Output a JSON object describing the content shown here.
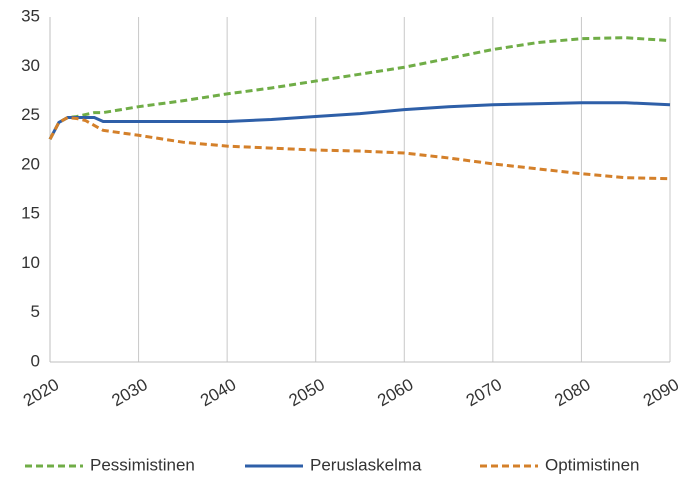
{
  "chart_data": {
    "type": "line",
    "x": [
      2020,
      2021,
      2022,
      2023,
      2024,
      2025,
      2026,
      2030,
      2035,
      2040,
      2045,
      2050,
      2055,
      2060,
      2065,
      2070,
      2075,
      2080,
      2085,
      2090
    ],
    "series": [
      {
        "name": "Pessimistinen",
        "color": "#70ad47",
        "dash": true,
        "values": [
          22.6,
          24.3,
          24.8,
          24.9,
          25.1,
          25.3,
          25.3,
          25.9,
          26.5,
          27.2,
          27.8,
          28.5,
          29.2,
          29.9,
          30.8,
          31.7,
          32.4,
          32.8,
          32.9,
          32.6
        ]
      },
      {
        "name": "Peruslaskelma",
        "color": "#2e5fa8",
        "dash": false,
        "values": [
          22.6,
          24.3,
          24.8,
          24.8,
          24.8,
          24.8,
          24.4,
          24.4,
          24.4,
          24.4,
          24.6,
          24.9,
          25.2,
          25.6,
          25.9,
          26.1,
          26.2,
          26.3,
          26.3,
          26.1
        ]
      },
      {
        "name": "Optimistinen",
        "color": "#d4802a",
        "dash": true,
        "values": [
          22.6,
          24.3,
          24.8,
          24.7,
          24.5,
          24.0,
          23.5,
          23.0,
          22.3,
          21.9,
          21.7,
          21.5,
          21.4,
          21.2,
          20.7,
          20.1,
          19.6,
          19.1,
          18.7,
          18.6
        ]
      }
    ],
    "xlim": [
      2020,
      2090
    ],
    "xticks": [
      2020,
      2030,
      2040,
      2050,
      2060,
      2070,
      2080,
      2090
    ],
    "ylim": [
      0,
      35
    ],
    "yticks": [
      0,
      5,
      10,
      15,
      20,
      25,
      30,
      35
    ],
    "grid": "x",
    "legend": "bottom"
  }
}
